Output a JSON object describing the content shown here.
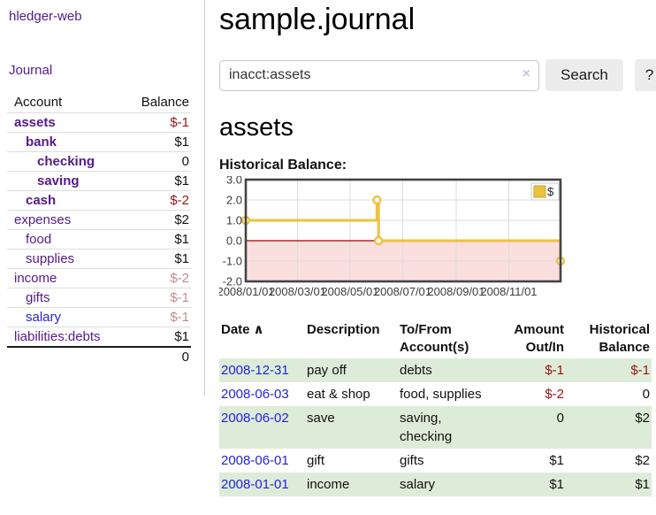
{
  "app": {
    "brand": "hledger-web"
  },
  "sidebar": {
    "journal_link": "Journal",
    "accounts_table": {
      "headers": {
        "account": "Account",
        "balance": "Balance"
      },
      "rows": [
        {
          "name": "assets",
          "balance": "$-1",
          "indent": 0,
          "bold": true,
          "negative": true,
          "dimmed": false,
          "link_color": "purple"
        },
        {
          "name": "bank",
          "balance": "$1",
          "indent": 1,
          "bold": true,
          "negative": false,
          "dimmed": false,
          "link_color": "purple"
        },
        {
          "name": "checking",
          "balance": "0",
          "indent": 2,
          "bold": true,
          "negative": false,
          "dimmed": false,
          "link_color": "purple"
        },
        {
          "name": "saving",
          "balance": "$1",
          "indent": 2,
          "bold": true,
          "negative": false,
          "dimmed": false,
          "link_color": "purple"
        },
        {
          "name": "cash",
          "balance": "$-2",
          "indent": 1,
          "bold": true,
          "negative": true,
          "dimmed": false,
          "link_color": "purple"
        },
        {
          "name": "expenses",
          "balance": "$2",
          "indent": 0,
          "bold": false,
          "negative": false,
          "dimmed": false,
          "link_color": "purple"
        },
        {
          "name": "food",
          "balance": "$1",
          "indent": 1,
          "bold": false,
          "negative": false,
          "dimmed": false,
          "link_color": "purple"
        },
        {
          "name": "supplies",
          "balance": "$1",
          "indent": 1,
          "bold": false,
          "negative": false,
          "dimmed": false,
          "link_color": "purple"
        },
        {
          "name": "income",
          "balance": "$-2",
          "indent": 0,
          "bold": false,
          "negative": true,
          "dimmed": true,
          "link_color": "purple"
        },
        {
          "name": "gifts",
          "balance": "$-1",
          "indent": 1,
          "bold": false,
          "negative": true,
          "dimmed": true,
          "link_color": "purple"
        },
        {
          "name": "salary",
          "balance": "$-1",
          "indent": 1,
          "bold": false,
          "negative": true,
          "dimmed": true,
          "link_color": "blue"
        },
        {
          "name": "liabilities:debts",
          "balance": "$1",
          "indent": 0,
          "bold": false,
          "negative": false,
          "dimmed": false,
          "link_color": "purple"
        }
      ],
      "total": "0"
    }
  },
  "header": {
    "title": "sample.journal"
  },
  "search": {
    "query": "inacct:assets",
    "clear_icon": "×",
    "button_label": "Search",
    "help_label": "?"
  },
  "account_page": {
    "heading": "assets",
    "chart_label": "Historical Balance:"
  },
  "chart_data": {
    "type": "line",
    "step": true,
    "title": "Historical Balance:",
    "legend": {
      "label": "$",
      "position": "top-right"
    },
    "x_range": [
      "2008-01-01",
      "2008-12-31"
    ],
    "ylim": [
      -2,
      3
    ],
    "y_ticks": [
      {
        "label": "3.0",
        "value": 3
      },
      {
        "label": "2.0",
        "value": 2
      },
      {
        "label": "1.0",
        "value": 1
      },
      {
        "label": "0.0",
        "value": 0
      },
      {
        "label": "-1.0",
        "value": -1
      },
      {
        "label": "-2.0",
        "value": -2
      }
    ],
    "x_ticks": [
      {
        "label": "2008/01/01",
        "date": "2008-01-01"
      },
      {
        "label": "2008/03/01",
        "date": "2008-03-01"
      },
      {
        "label": "2008/05/01",
        "date": "2008-05-01"
      },
      {
        "label": "2008/07/01",
        "date": "2008-07-01"
      },
      {
        "label": "2008/09/01",
        "date": "2008-09-01"
      },
      {
        "label": "2008/11/01",
        "date": "2008-11-01"
      }
    ],
    "series": [
      {
        "name": "$",
        "color": "#edc240",
        "points": [
          [
            "2008-01-01",
            1
          ],
          [
            "2008-06-01",
            2
          ],
          [
            "2008-06-03",
            0
          ],
          [
            "2008-12-31",
            -1
          ]
        ]
      }
    ],
    "grid": true,
    "colors": {
      "grid": "#dddddd",
      "border": "#444444",
      "zero_line": "#a00000",
      "negative_region": "#fbdede",
      "marker_fill": "#ffffff",
      "tick_text": "#3c3c3c"
    }
  },
  "register": {
    "columns": [
      {
        "line1": "Date",
        "line2": "",
        "align": "left",
        "sort_icon": "∧"
      },
      {
        "line1": "Description",
        "line2": "",
        "align": "left"
      },
      {
        "line1": "To/From",
        "line2": "Account(s)",
        "align": "left"
      },
      {
        "line1": "Amount",
        "line2": "Out/In",
        "align": "right"
      },
      {
        "line1": "Historical",
        "line2": "Balance",
        "align": "right"
      }
    ],
    "rows": [
      {
        "date": "2008-12-31",
        "description": "pay off",
        "accounts": "debts",
        "amount": "$-1",
        "balance": "$-1"
      },
      {
        "date": "2008-06-03",
        "description": "eat & shop",
        "accounts": "food, supplies",
        "amount": "$-2",
        "balance": "0"
      },
      {
        "date": "2008-06-02",
        "description": "save",
        "accounts": "saving,\nchecking",
        "amount": "0",
        "balance": "$2"
      },
      {
        "date": "2008-06-01",
        "description": "gift",
        "accounts": "gifts",
        "amount": "$1",
        "balance": "$2"
      },
      {
        "date": "2008-01-01",
        "description": "income",
        "accounts": "salary",
        "amount": "$1",
        "balance": "$1"
      }
    ]
  }
}
